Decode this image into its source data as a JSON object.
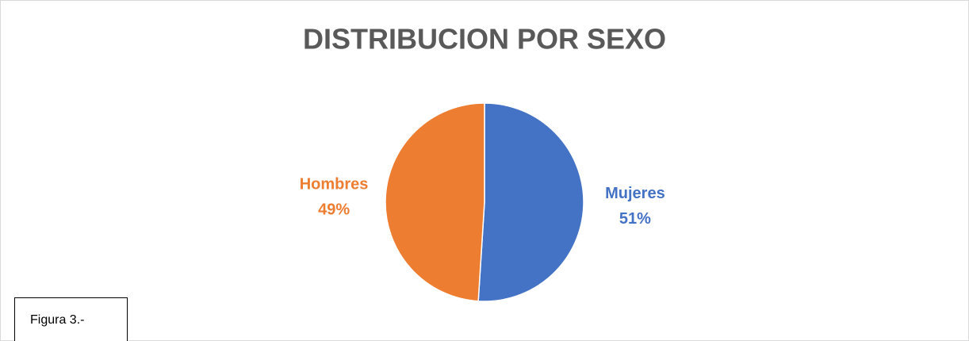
{
  "chart_data": {
    "type": "pie",
    "title": "DISTRIBUCION POR SEXO",
    "categories": [
      "Mujeres",
      "Hombres"
    ],
    "values": [
      51,
      49
    ],
    "value_labels": [
      "51%",
      "49%"
    ],
    "colors": [
      "#4472c4",
      "#ed7d31"
    ]
  },
  "caption": "Figura 3.-"
}
